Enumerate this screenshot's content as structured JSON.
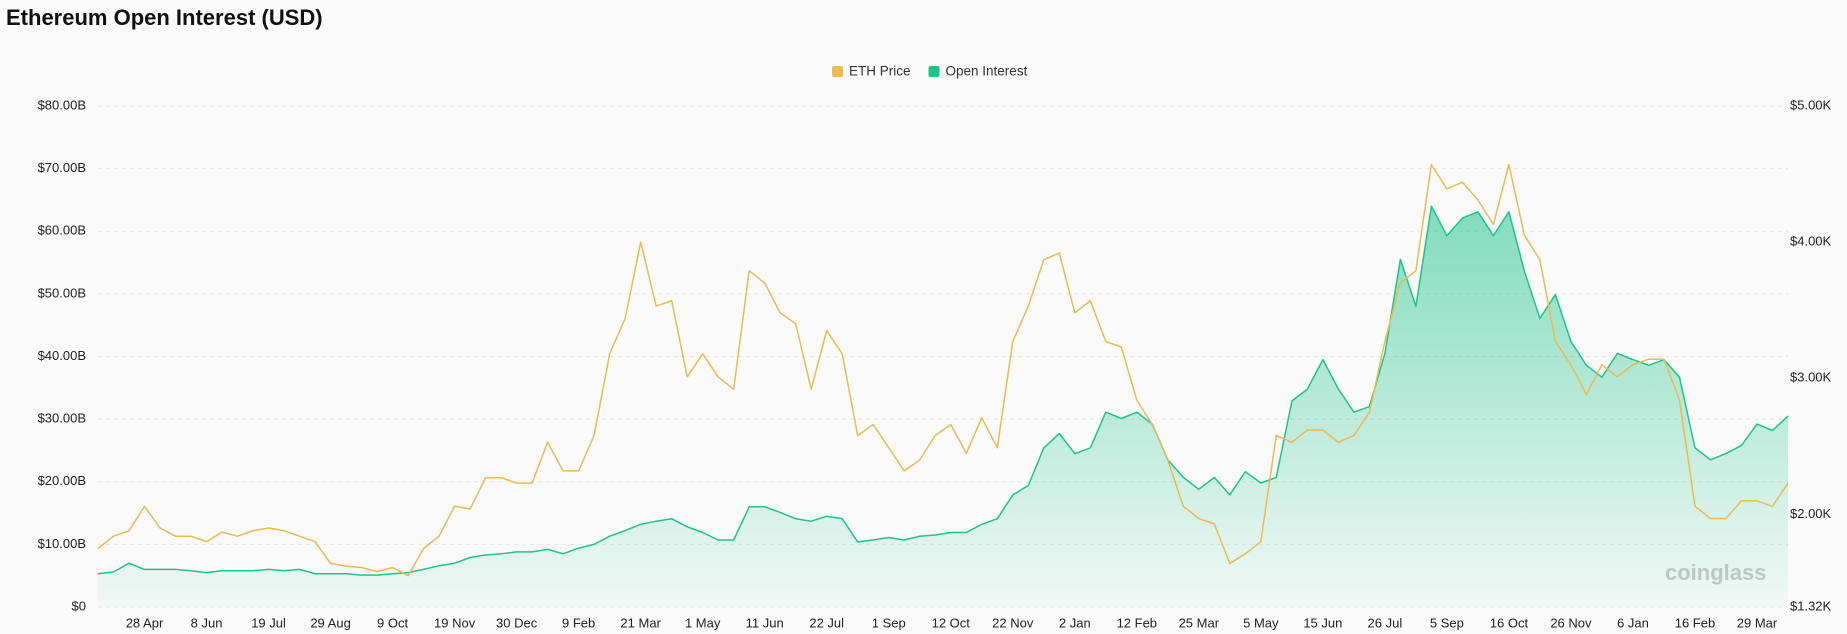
{
  "chart_data": {
    "type": "line",
    "title": "Ethereum Open Interest (USD)",
    "watermark": "coinglass",
    "grid": true,
    "legend": "top",
    "categories": [
      null,
      null,
      null,
      "28 Apr",
      null,
      null,
      null,
      "8 Jun",
      null,
      null,
      null,
      "19 Jul",
      null,
      null,
      null,
      "29 Aug",
      null,
      null,
      null,
      "9 Oct",
      null,
      null,
      null,
      "19 Nov",
      null,
      null,
      null,
      "30 Dec",
      null,
      null,
      null,
      "9 Feb",
      null,
      null,
      null,
      "21 Mar",
      null,
      null,
      null,
      "1 May",
      null,
      null,
      null,
      "11 Jun",
      null,
      null,
      null,
      "22 Jul",
      null,
      null,
      null,
      "1 Sep",
      null,
      null,
      null,
      "12 Oct",
      null,
      null,
      null,
      "22 Nov",
      null,
      null,
      null,
      "2 Jan",
      null,
      null,
      null,
      "12 Feb",
      null,
      null,
      null,
      "25 Mar",
      null,
      null,
      null,
      "5 May",
      null,
      null,
      null,
      "15 Jun",
      null,
      null,
      null,
      "26 Jul",
      null,
      null,
      null,
      "5 Sep",
      null,
      null,
      null,
      "16 Oct",
      null,
      null,
      null,
      "26 Nov",
      null,
      null,
      null,
      "6 Jan",
      null,
      null,
      null,
      "16 Feb",
      null,
      null,
      null,
      "29 Mar",
      null,
      null
    ],
    "ylim": [
      0,
      80
    ],
    "yticks": [
      {
        "value": 0,
        "label": "$0"
      },
      {
        "value": 10,
        "label": "$10.00B"
      },
      {
        "value": 20,
        "label": "$20.00B"
      },
      {
        "value": 30,
        "label": "$30.00B"
      },
      {
        "value": 40,
        "label": "$40.00B"
      },
      {
        "value": 50,
        "label": "$50.00B"
      },
      {
        "value": 60,
        "label": "$60.00B"
      },
      {
        "value": 70,
        "label": "$70.00B"
      },
      {
        "value": 80,
        "label": "$80.00B"
      }
    ],
    "y2lim": [
      1320,
      5000
    ],
    "y2ticks": [
      {
        "value": 1320,
        "label": "$1.32K"
      },
      {
        "value": 2000,
        "label": "$2.00K"
      },
      {
        "value": 3000,
        "label": "$3.00K"
      },
      {
        "value": 4000,
        "label": "$4.00K"
      },
      {
        "value": 5000,
        "label": "$5.00K"
      }
    ],
    "series": [
      {
        "name": "ETH Price",
        "color": "#e9bb52",
        "axis": "y2",
        "values": [
          1750,
          1840,
          1880,
          2060,
          1900,
          1840,
          1840,
          1800,
          1870,
          1840,
          1880,
          1900,
          1880,
          1840,
          1800,
          1640,
          1620,
          1610,
          1580,
          1610,
          1550,
          1750,
          1840,
          2060,
          2040,
          2270,
          2270,
          2230,
          2230,
          2530,
          2320,
          2320,
          2580,
          3180,
          3440,
          4000,
          3530,
          3570,
          3010,
          3180,
          3010,
          2920,
          3790,
          3700,
          3480,
          3400,
          2920,
          3350,
          3180,
          2580,
          2660,
          2490,
          2320,
          2400,
          2580,
          2660,
          2450,
          2710,
          2490,
          3270,
          3530,
          3870,
          3920,
          3480,
          3570,
          3270,
          3230,
          2840,
          2660,
          2400,
          2060,
          1970,
          1930,
          1640,
          1710,
          1800,
          2580,
          2530,
          2620,
          2620,
          2530,
          2580,
          2750,
          3270,
          3700,
          3790,
          4570,
          4390,
          4440,
          4310,
          4130,
          4570,
          4050,
          3870,
          3270,
          3100,
          2880,
          3100,
          3010,
          3100,
          3140,
          3140,
          2840,
          2060,
          1970,
          1970,
          2100,
          2100,
          2060,
          2230
        ]
      },
      {
        "name": "Open Interest",
        "color": "#1fc38c",
        "values": [
          5.3,
          5.6,
          7.0,
          6.0,
          6.0,
          6.0,
          5.8,
          5.5,
          5.8,
          5.8,
          5.8,
          6.0,
          5.8,
          6.0,
          5.3,
          5.3,
          5.3,
          5.1,
          5.1,
          5.3,
          5.5,
          6.0,
          6.6,
          7.0,
          7.9,
          8.3,
          8.5,
          8.8,
          8.8,
          9.2,
          8.5,
          9.4,
          10.0,
          11.3,
          12.2,
          13.2,
          13.7,
          14.1,
          12.8,
          11.9,
          10.7,
          10.7,
          16.0,
          16.0,
          15.1,
          14.1,
          13.7,
          14.5,
          14.1,
          10.4,
          10.7,
          11.1,
          10.7,
          11.3,
          11.5,
          11.9,
          11.9,
          13.2,
          14.1,
          17.9,
          19.4,
          25.4,
          27.7,
          24.5,
          25.4,
          31.1,
          30.1,
          31.1,
          29.2,
          23.5,
          20.7,
          18.8,
          20.7,
          17.9,
          21.6,
          19.8,
          20.7,
          32.9,
          34.8,
          39.5,
          34.8,
          31.1,
          32.0,
          40.5,
          55.5,
          48.0,
          64.0,
          59.3,
          62.1,
          63.1,
          59.3,
          63.1,
          53.6,
          46.1,
          49.9,
          42.4,
          38.6,
          36.7,
          40.5,
          39.5,
          38.6,
          39.5,
          36.7,
          25.4,
          23.5,
          24.5,
          25.8,
          29.2,
          28.2,
          30.5
        ]
      }
    ]
  }
}
